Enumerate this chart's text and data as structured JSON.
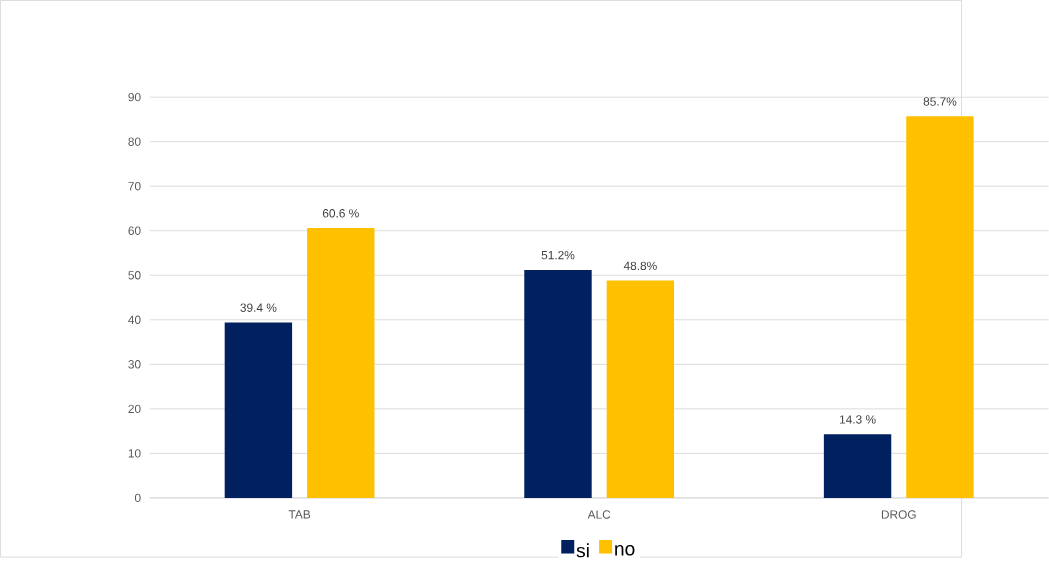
{
  "chart_data": {
    "type": "bar",
    "categories": [
      "TAB",
      "ALC",
      "DROG"
    ],
    "series": [
      {
        "name": "si",
        "color": "#002060",
        "values": [
          39.4,
          51.2,
          14.3
        ],
        "value_labels": [
          "39.4 %",
          "51.2%",
          "14.3 %"
        ]
      },
      {
        "name": "no",
        "color": "#ffc000",
        "values": [
          60.6,
          48.8,
          85.7
        ],
        "value_labels": [
          "60.6 %",
          "48.8%",
          "85.7%"
        ]
      }
    ],
    "ylim": [
      0,
      90
    ],
    "yticks": [
      0,
      10,
      20,
      30,
      40,
      50,
      60,
      70,
      80,
      90
    ],
    "grid": "y",
    "legend": "bottom"
  }
}
